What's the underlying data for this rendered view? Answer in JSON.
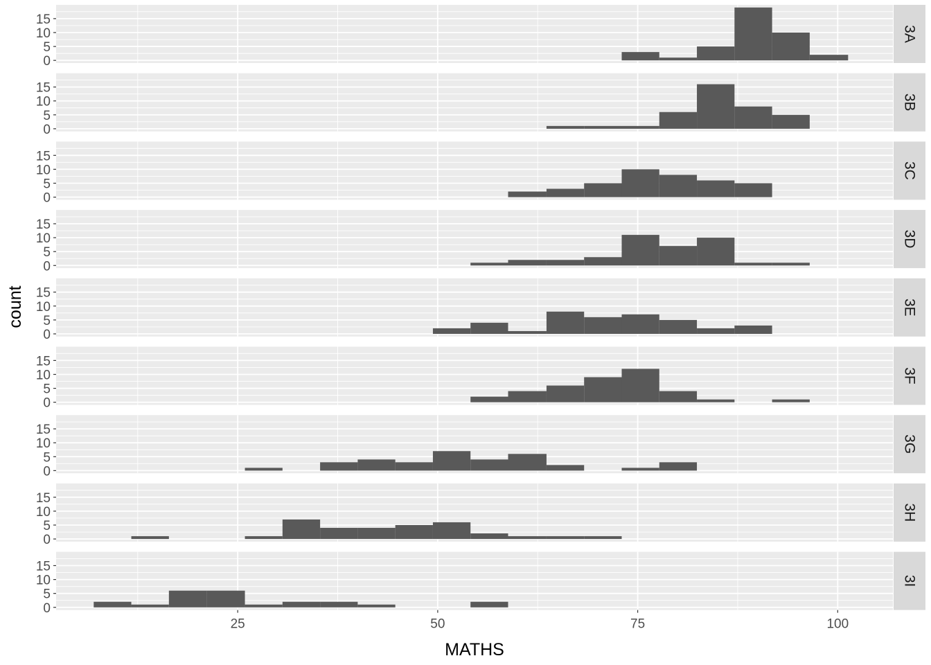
{
  "chart_data": {
    "type": "histogram",
    "facet_orientation": "rows",
    "xlabel": "MATHS",
    "ylabel": "count",
    "x_ticks": [
      25,
      50,
      75,
      100
    ],
    "y_ticks": [
      0,
      5,
      10,
      15
    ],
    "xlim": [
      2.3,
      106.9
    ],
    "ylim": [
      -0.95,
      19.95
    ],
    "bins": [
      [
        7.0,
        11.7
      ],
      [
        11.7,
        16.4
      ],
      [
        16.4,
        21.1
      ],
      [
        21.1,
        25.9
      ],
      [
        25.9,
        30.6
      ],
      [
        30.6,
        35.3
      ],
      [
        35.3,
        40.0
      ],
      [
        40.0,
        44.7
      ],
      [
        44.7,
        49.4
      ],
      [
        49.4,
        54.1
      ],
      [
        54.1,
        58.8
      ],
      [
        58.8,
        63.6
      ],
      [
        63.6,
        68.3
      ],
      [
        68.3,
        73.0
      ],
      [
        73.0,
        77.7
      ],
      [
        77.7,
        82.4
      ],
      [
        82.4,
        87.1
      ],
      [
        87.1,
        91.8
      ],
      [
        91.8,
        96.5
      ],
      [
        96.5,
        101.3
      ]
    ],
    "bar_color": "#595959",
    "panel_background": "#ebebeb",
    "strip_background": "#d9d9d9",
    "facets": [
      {
        "label": "3A",
        "counts": [
          0,
          0,
          0,
          0,
          0,
          0,
          0,
          0,
          0,
          0,
          0,
          0,
          0,
          0,
          3,
          1,
          5,
          19,
          10,
          2
        ]
      },
      {
        "label": "3B",
        "counts": [
          0,
          0,
          0,
          0,
          0,
          0,
          0,
          0,
          0,
          0,
          0,
          0,
          1,
          1,
          1,
          6,
          16,
          8,
          5,
          0
        ]
      },
      {
        "label": "3C",
        "counts": [
          0,
          0,
          0,
          0,
          0,
          0,
          0,
          0,
          0,
          0,
          0,
          2,
          3,
          5,
          10,
          8,
          6,
          5,
          0,
          0
        ]
      },
      {
        "label": "3D",
        "counts": [
          0,
          0,
          0,
          0,
          0,
          0,
          0,
          0,
          0,
          0,
          1,
          2,
          2,
          3,
          11,
          7,
          10,
          1,
          1,
          0
        ]
      },
      {
        "label": "3E",
        "counts": [
          0,
          0,
          0,
          0,
          0,
          0,
          0,
          0,
          0,
          2,
          4,
          1,
          8,
          6,
          7,
          5,
          2,
          3,
          0,
          0
        ]
      },
      {
        "label": "3F",
        "counts": [
          0,
          0,
          0,
          0,
          0,
          0,
          0,
          0,
          0,
          0,
          2,
          4,
          6,
          9,
          12,
          4,
          1,
          0,
          1,
          0
        ]
      },
      {
        "label": "3G",
        "counts": [
          0,
          0,
          0,
          0,
          1,
          0,
          3,
          4,
          3,
          7,
          4,
          6,
          2,
          0,
          1,
          3,
          0,
          0,
          0,
          0
        ]
      },
      {
        "label": "3H",
        "counts": [
          0,
          1,
          0,
          0,
          1,
          7,
          4,
          4,
          5,
          6,
          2,
          1,
          1,
          1,
          0,
          0,
          0,
          0,
          0,
          0
        ]
      },
      {
        "label": "3I",
        "counts": [
          2,
          1,
          6,
          6,
          1,
          2,
          2,
          1,
          0,
          0,
          2,
          0,
          0,
          0,
          0,
          0,
          0,
          0,
          0,
          0
        ]
      }
    ]
  }
}
